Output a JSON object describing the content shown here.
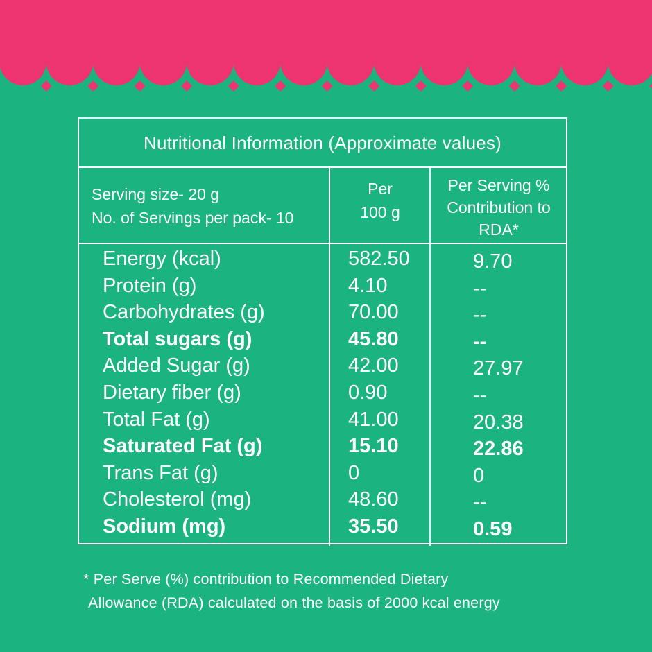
{
  "colors": {
    "background": "#1bb380",
    "band": "#ee3470",
    "text": "#ffffff"
  },
  "table": {
    "title": "Nutritional Information (Approximate values)",
    "serving_size": "Serving size- 20 g",
    "servings_per_pack": "No. of Servings per pack- 10",
    "col_per100_line1": "Per",
    "col_per100_line2": "100 g",
    "col_rda_line1": "Per Serving %",
    "col_rda_line2": "Contribution to",
    "col_rda_line3": "RDA*",
    "rows": [
      {
        "label": "Energy (kcal)",
        "per100": "582.50",
        "rda": "9.70",
        "bold": false
      },
      {
        "label": "Protein (g)",
        "per100": "4.10",
        "rda": "--",
        "bold": false
      },
      {
        "label": "Carbohydrates (g)",
        "per100": "70.00",
        "rda": "--",
        "bold": false
      },
      {
        "label": "Total sugars (g)",
        "per100": "45.80",
        "rda": "--",
        "bold": true
      },
      {
        "label": "Added Sugar (g)",
        "per100": "42.00",
        "rda": "27.97",
        "bold": false
      },
      {
        "label": "Dietary fiber (g)",
        "per100": "0.90",
        "rda": "--",
        "bold": false
      },
      {
        "label": "Total Fat (g)",
        "per100": "41.00",
        "rda": "20.38",
        "bold": false
      },
      {
        "label": "Saturated Fat (g)",
        "per100": "15.10",
        "rda": "22.86",
        "bold": true
      },
      {
        "label": "Trans Fat (g)",
        "per100": "0",
        "rda": "0",
        "bold": false
      },
      {
        "label": "Cholesterol (mg)",
        "per100": "48.60",
        "rda": "--",
        "bold": false
      },
      {
        "label": "Sodium (mg)",
        "per100": "35.50",
        "rda": "0.59",
        "bold": true
      }
    ]
  },
  "footnote": {
    "line1": "* Per Serve (%) contribution to Recommended Dietary",
    "line2": "Allowance (RDA) calculated on the basis of 2000 kcal energy"
  }
}
